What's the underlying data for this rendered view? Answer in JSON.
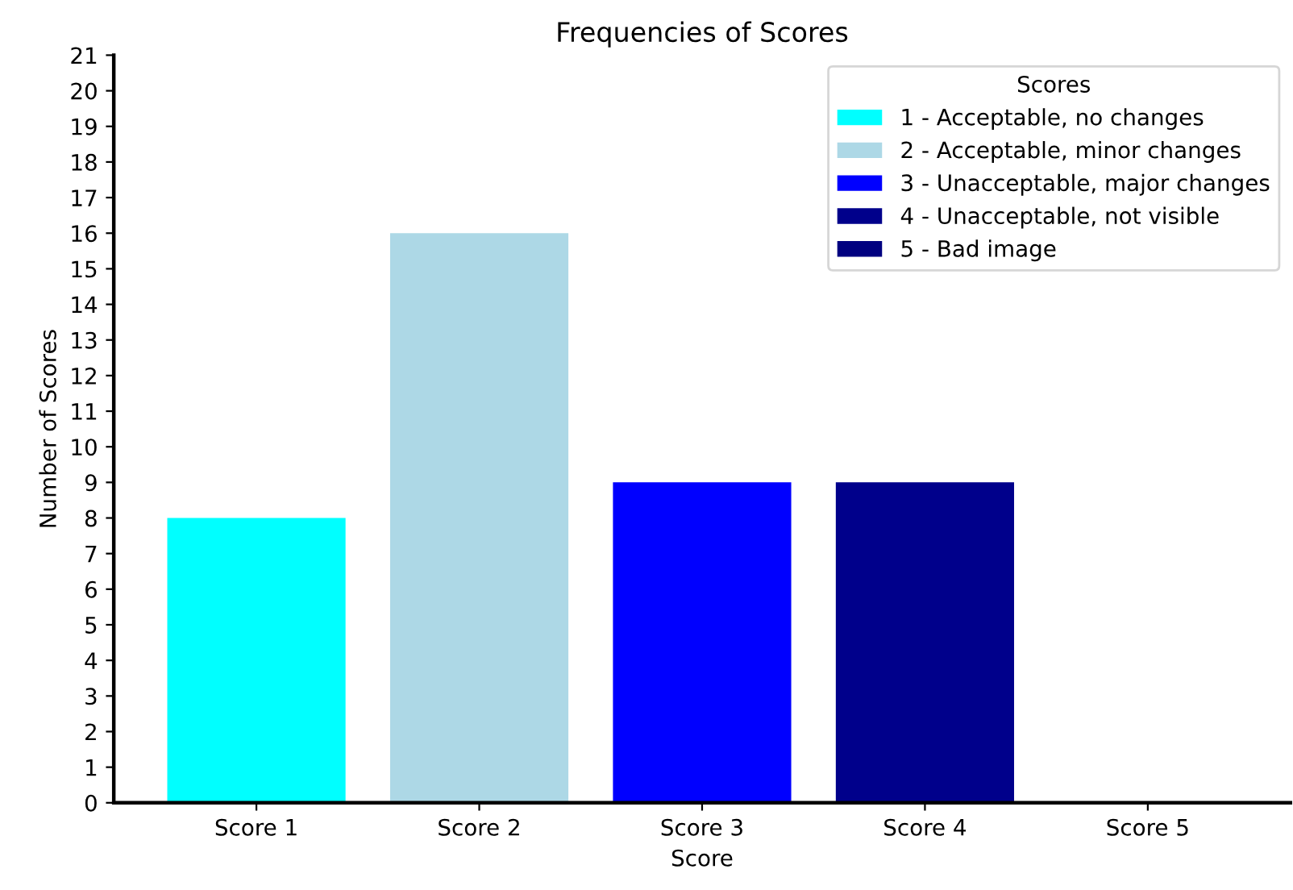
{
  "chart_data": {
    "type": "bar",
    "title": "Frequencies of Scores",
    "xlabel": "Score",
    "ylabel": "Number of Scores",
    "legend_title": "Scores",
    "categories": [
      "Score 1",
      "Score 2",
      "Score 3",
      "Score 4",
      "Score 5"
    ],
    "series": [
      {
        "name": "1 - Acceptable, no changes",
        "color": "#00ffff",
        "values": [
          8,
          null,
          null,
          null,
          null
        ]
      },
      {
        "name": "2 - Acceptable, minor changes",
        "color": "#add8e6",
        "values": [
          null,
          16,
          null,
          null,
          null
        ]
      },
      {
        "name": "3 - Unacceptable, major changes",
        "color": "#0000ff",
        "values": [
          null,
          null,
          9,
          null,
          null
        ]
      },
      {
        "name": "4 - Unacceptable, not visible",
        "color": "#00008b",
        "values": [
          null,
          null,
          null,
          9,
          null
        ]
      },
      {
        "name": "5 - Bad image",
        "color": "#000080",
        "values": [
          null,
          null,
          null,
          null,
          0
        ]
      }
    ],
    "ylim": [
      0,
      21
    ],
    "yticks": [
      0,
      1,
      2,
      3,
      4,
      5,
      6,
      7,
      8,
      9,
      10,
      11,
      12,
      13,
      14,
      15,
      16,
      17,
      18,
      19,
      20,
      21
    ],
    "legend": "top right",
    "grid": false
  }
}
